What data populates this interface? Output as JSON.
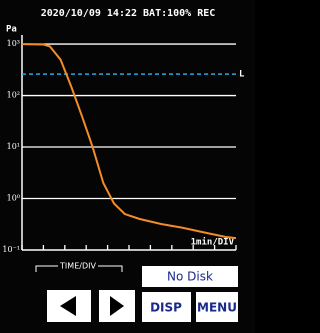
{
  "status_bar": "2020/10/09 14:22 BAT:100% REC",
  "chart_data": {
    "type": "line",
    "y_label": "Pa",
    "x_label": "1min/DIV",
    "x": [
      0,
      1,
      1.3,
      1.8,
      2.3,
      2.8,
      3.3,
      3.8,
      4.3,
      4.8,
      5.5,
      6.5,
      7.5,
      8.5,
      9.5,
      10
    ],
    "series": [
      {
        "color": "#f28c28",
        "values": [
          1000,
          980,
          900,
          500,
          150,
          40,
          10,
          2,
          0.8,
          0.5,
          0.4,
          0.32,
          0.27,
          0.22,
          0.18,
          0.17
        ]
      }
    ],
    "xlim": [
      0,
      10
    ],
    "xticks": [
      0,
      1,
      2,
      3,
      4,
      5,
      6,
      7,
      8,
      9,
      10
    ],
    "ylim": [
      0.1,
      1500
    ],
    "log_y": true,
    "yticks": [
      {
        "value": 0.1,
        "label": "10⁻¹"
      },
      {
        "value": 1,
        "label": "10⁰"
      },
      {
        "value": 10,
        "label": "10¹"
      },
      {
        "value": 100,
        "label": "10²"
      },
      {
        "value": 1000,
        "label": "10³"
      }
    ],
    "grid": true,
    "limit": {
      "value": 260,
      "label": "L",
      "color": "#2aa8e0"
    }
  },
  "controls": {
    "time_div": "TIME/DIV",
    "disk_status": "No Disk",
    "disp": "DISP",
    "menu": "MENU"
  }
}
